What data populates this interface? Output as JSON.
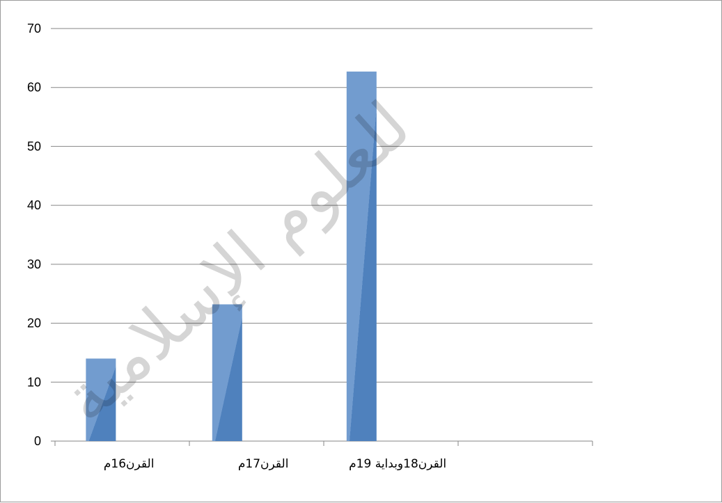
{
  "chart_data": {
    "type": "bar",
    "title": "",
    "xlabel": "",
    "ylabel": "",
    "categories": [
      "القرن16م",
      "القرن17م",
      "القرن18وبداية 19م",
      ""
    ],
    "values": [
      14,
      23.2,
      62.7,
      null
    ],
    "ylim": [
      0,
      70
    ],
    "yticks": [
      0,
      10,
      20,
      30,
      40,
      50,
      60,
      70
    ],
    "grid": true,
    "legend": "none",
    "colors": {
      "bar_base": "#4f81bd",
      "bar_highlight": "#729ccf",
      "grid": "#868686",
      "axis": "#868686"
    }
  },
  "watermark": {
    "text": "للعلوم الإسلامية"
  }
}
